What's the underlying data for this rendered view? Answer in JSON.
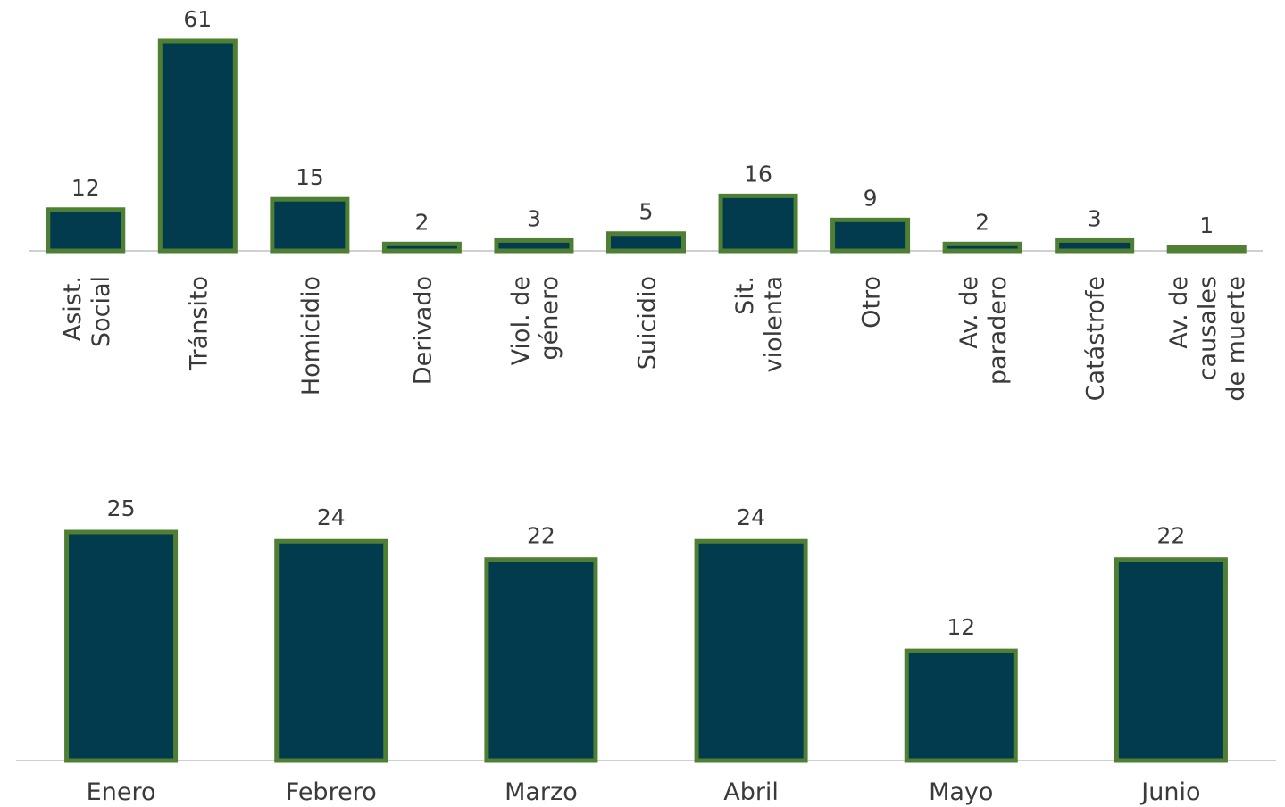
{
  "colors": {
    "bar_fill": "#023A4E",
    "bar_stroke": "#4E7F32",
    "text": "#3A3A3A",
    "axis": "#D0D0D0"
  },
  "chart_data": [
    {
      "type": "bar",
      "categories": [
        [
          "Asist.",
          "Social"
        ],
        [
          "Tránsito"
        ],
        [
          "Homicidio"
        ],
        [
          "Derivado"
        ],
        [
          "Viol. de",
          "género"
        ],
        [
          "Suicidio"
        ],
        [
          "Sit.",
          "violenta"
        ],
        [
          "Otro"
        ],
        [
          "Av. de",
          "paradero"
        ],
        [
          "Catástrofe"
        ],
        [
          "Av. de",
          "causales",
          "de muerte"
        ]
      ],
      "values": [
        12,
        61,
        15,
        2,
        3,
        5,
        16,
        9,
        2,
        3,
        1
      ],
      "label_rotation": -90,
      "ylim": [
        0,
        61
      ]
    },
    {
      "type": "bar",
      "categories": [
        "Enero",
        "Febrero",
        "Marzo",
        "Abril",
        "Mayo",
        "Junio"
      ],
      "values": [
        25,
        24,
        22,
        24,
        12,
        22
      ],
      "ylim": [
        0,
        25
      ]
    }
  ]
}
